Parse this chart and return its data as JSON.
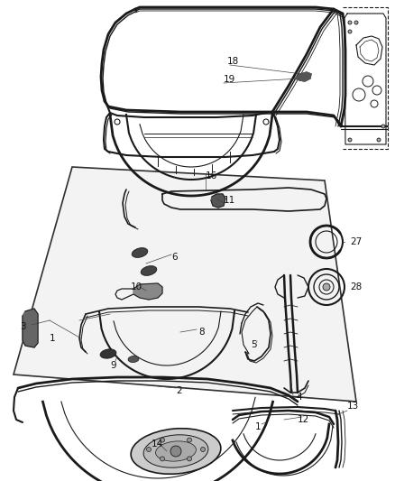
{
  "bg_color": "#ffffff",
  "line_color": "#1a1a1a",
  "label_color": "#111111",
  "font_size": 7.5,
  "figsize": [
    4.38,
    5.33
  ],
  "dpi": 100
}
